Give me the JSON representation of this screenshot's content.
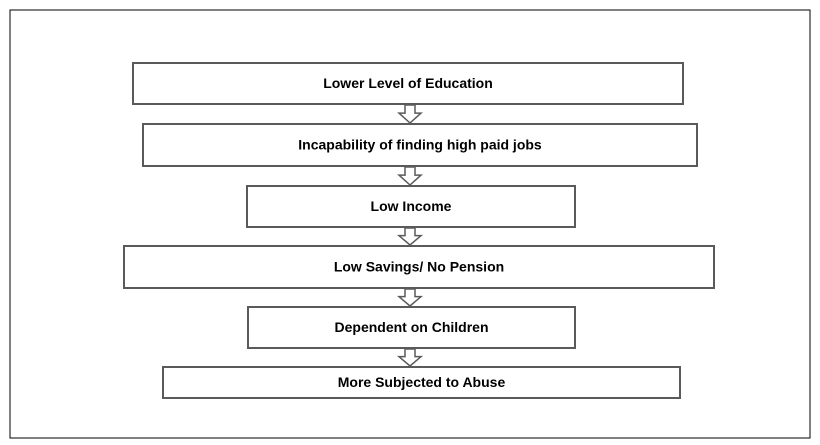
{
  "nodes": [
    {
      "label": "Lower Level of Education"
    },
    {
      "label": "Incapability of finding high paid jobs"
    },
    {
      "label": "Low Income"
    },
    {
      "label": "Low Savings/ No Pension"
    },
    {
      "label": "Dependent on Children"
    },
    {
      "label": "More Subjected to Abuse"
    }
  ]
}
